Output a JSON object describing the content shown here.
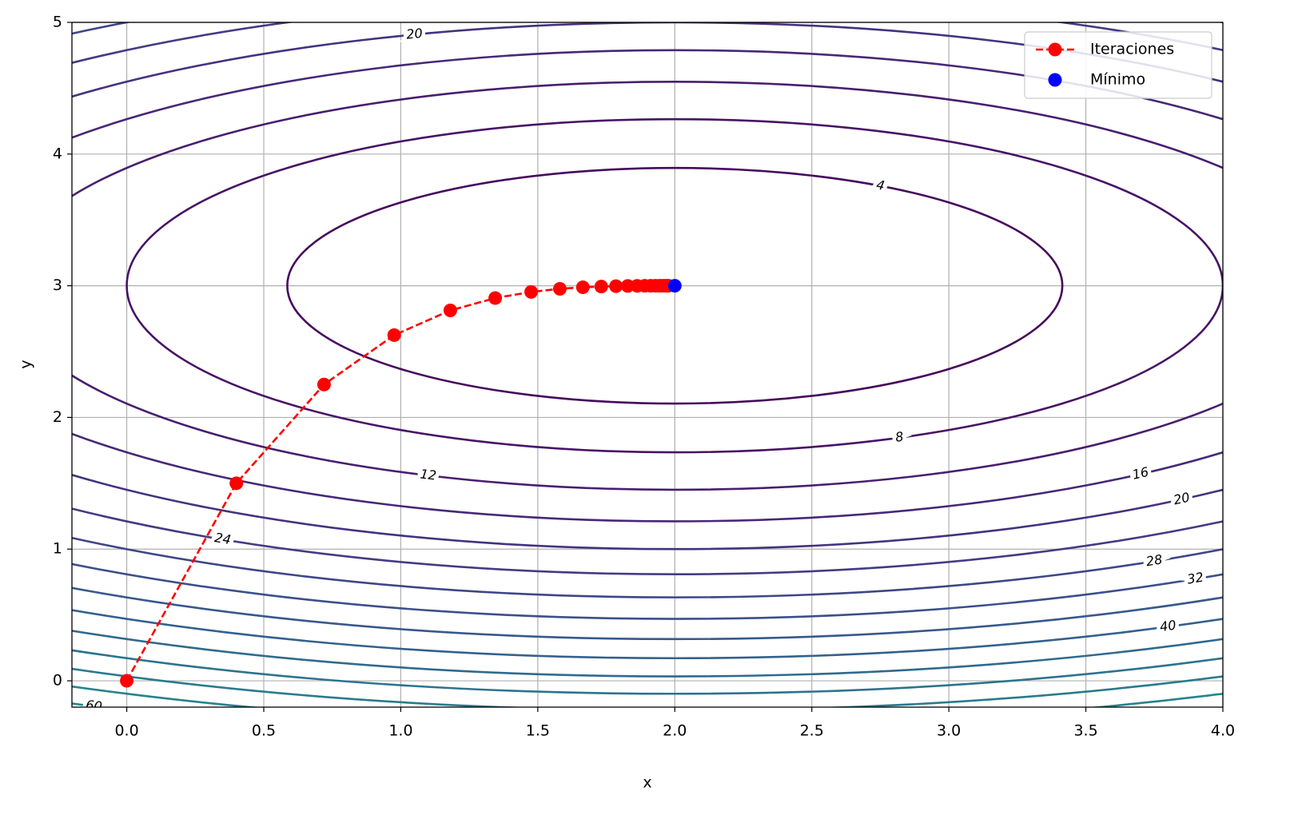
{
  "chart_data": {
    "type": "contour",
    "x_label": "x",
    "y_label": "y",
    "xlim": [
      -0.2,
      4.0
    ],
    "ylim": [
      -0.2,
      5.0
    ],
    "xticks": [
      {
        "value": 0,
        "label": "0.0"
      },
      {
        "value": 0.5,
        "label": "0.5"
      },
      {
        "value": 1,
        "label": "1.0"
      },
      {
        "value": 1.5,
        "label": "1.5"
      },
      {
        "value": 2,
        "label": "2.0"
      },
      {
        "value": 2.5,
        "label": "2.5"
      },
      {
        "value": 3,
        "label": "3.0"
      },
      {
        "value": 3.5,
        "label": "3.5"
      },
      {
        "value": 4,
        "label": "4.0"
      }
    ],
    "yticks": [
      0,
      1,
      2,
      3,
      4,
      5
    ],
    "grid": true,
    "legend": "upper right",
    "contour": {
      "levels": [
        4,
        8,
        12,
        16,
        20,
        24,
        28,
        32,
        36,
        40,
        44,
        48,
        52,
        56,
        60
      ],
      "colors": [
        "#46085c",
        "#471365",
        "#481e6f",
        "#472877",
        "#45327e",
        "#423c83",
        "#3e4687",
        "#3b4f8a",
        "#37588c",
        "#33618d",
        "#2f6a8d",
        "#2c738e",
        "#297b8e",
        "#26838e",
        "#23898e"
      ],
      "coefficients": [
        2,
        5
      ]
    },
    "series": [
      {
        "name": "Iteraciones",
        "color": "#ff0000",
        "x": [
          0,
          0.4,
          0.72,
          0.976,
          1.1808,
          1.3446,
          1.4757,
          1.5806,
          1.6645,
          1.7316,
          1.7853,
          1.8282,
          1.8626,
          1.89,
          1.912,
          1.9296,
          1.9437,
          1.955,
          1.964,
          1.9712,
          1.9769
        ],
        "y": [
          0,
          1.5,
          2.25,
          2.625,
          2.8125,
          2.9063,
          2.9531,
          2.9766,
          2.9883,
          2.9941,
          2.9971,
          2.9985,
          2.9993,
          2.9996,
          2.9998,
          2.9999,
          3.0,
          3.0,
          3.0,
          3.0,
          3.0
        ]
      },
      {
        "name": "Mínimo",
        "color": "#0000ff",
        "x": [
          2
        ],
        "y": [
          3
        ]
      }
    ]
  }
}
